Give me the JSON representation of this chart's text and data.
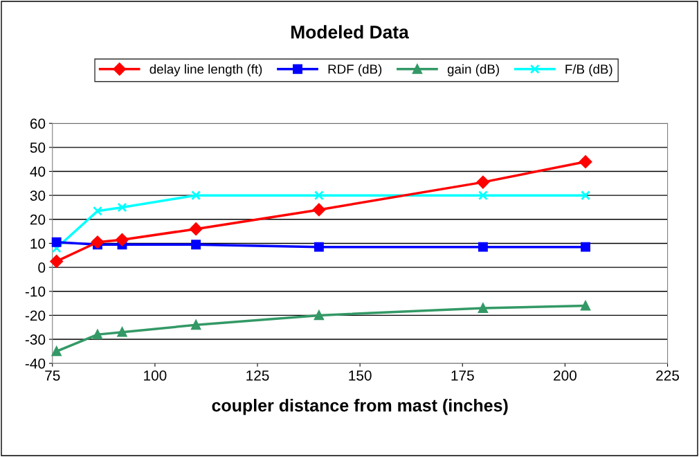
{
  "chart_data": {
    "type": "line",
    "title": "Modeled Data",
    "xlabel": "coupler distance from mast (inches)",
    "x": [
      76,
      86,
      92,
      110,
      140,
      180,
      205
    ],
    "series": [
      {
        "name": "delay line length (ft)",
        "color": "#ff0000",
        "marker": "diamond",
        "values": [
          2.5,
          10.5,
          11.5,
          16,
          24,
          35.5,
          44
        ]
      },
      {
        "name": "RDF (dB)",
        "color": "#0000ff",
        "marker": "square",
        "values": [
          10.5,
          9.5,
          9.5,
          9.5,
          8.5,
          8.5,
          8.5
        ]
      },
      {
        "name": "gain (dB)",
        "color": "#339966",
        "marker": "triangle",
        "values": [
          -35,
          -28,
          -27,
          -24,
          -20,
          -17,
          -16
        ]
      },
      {
        "name": "F/B (dB)",
        "color": "#00ffff",
        "marker": "cross",
        "values": [
          8,
          23.5,
          25,
          30,
          30,
          30,
          30
        ]
      }
    ],
    "xlim": [
      75,
      225
    ],
    "xticks": [
      75,
      100,
      125,
      150,
      175,
      200,
      225
    ],
    "ylim": [
      -40,
      60
    ],
    "yticks": [
      -40,
      -30,
      -20,
      -10,
      0,
      10,
      20,
      30,
      40,
      50,
      60
    ],
    "grid": "y",
    "legend": "top",
    "line_style": "solid"
  }
}
